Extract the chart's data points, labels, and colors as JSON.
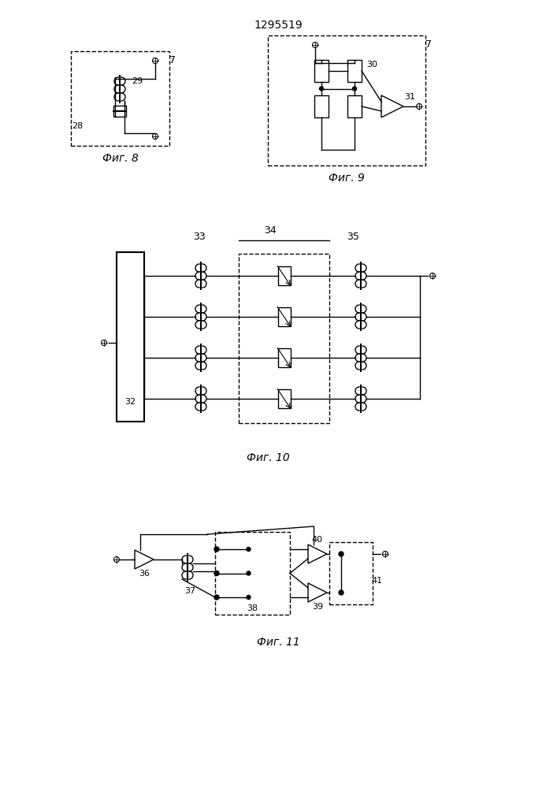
{
  "title": "1295519",
  "bg_color": "#ffffff",
  "fig_labels": [
    "Фиг. 8",
    "Фиг. 9",
    "Фиг. 10",
    "Фиг. 11"
  ]
}
